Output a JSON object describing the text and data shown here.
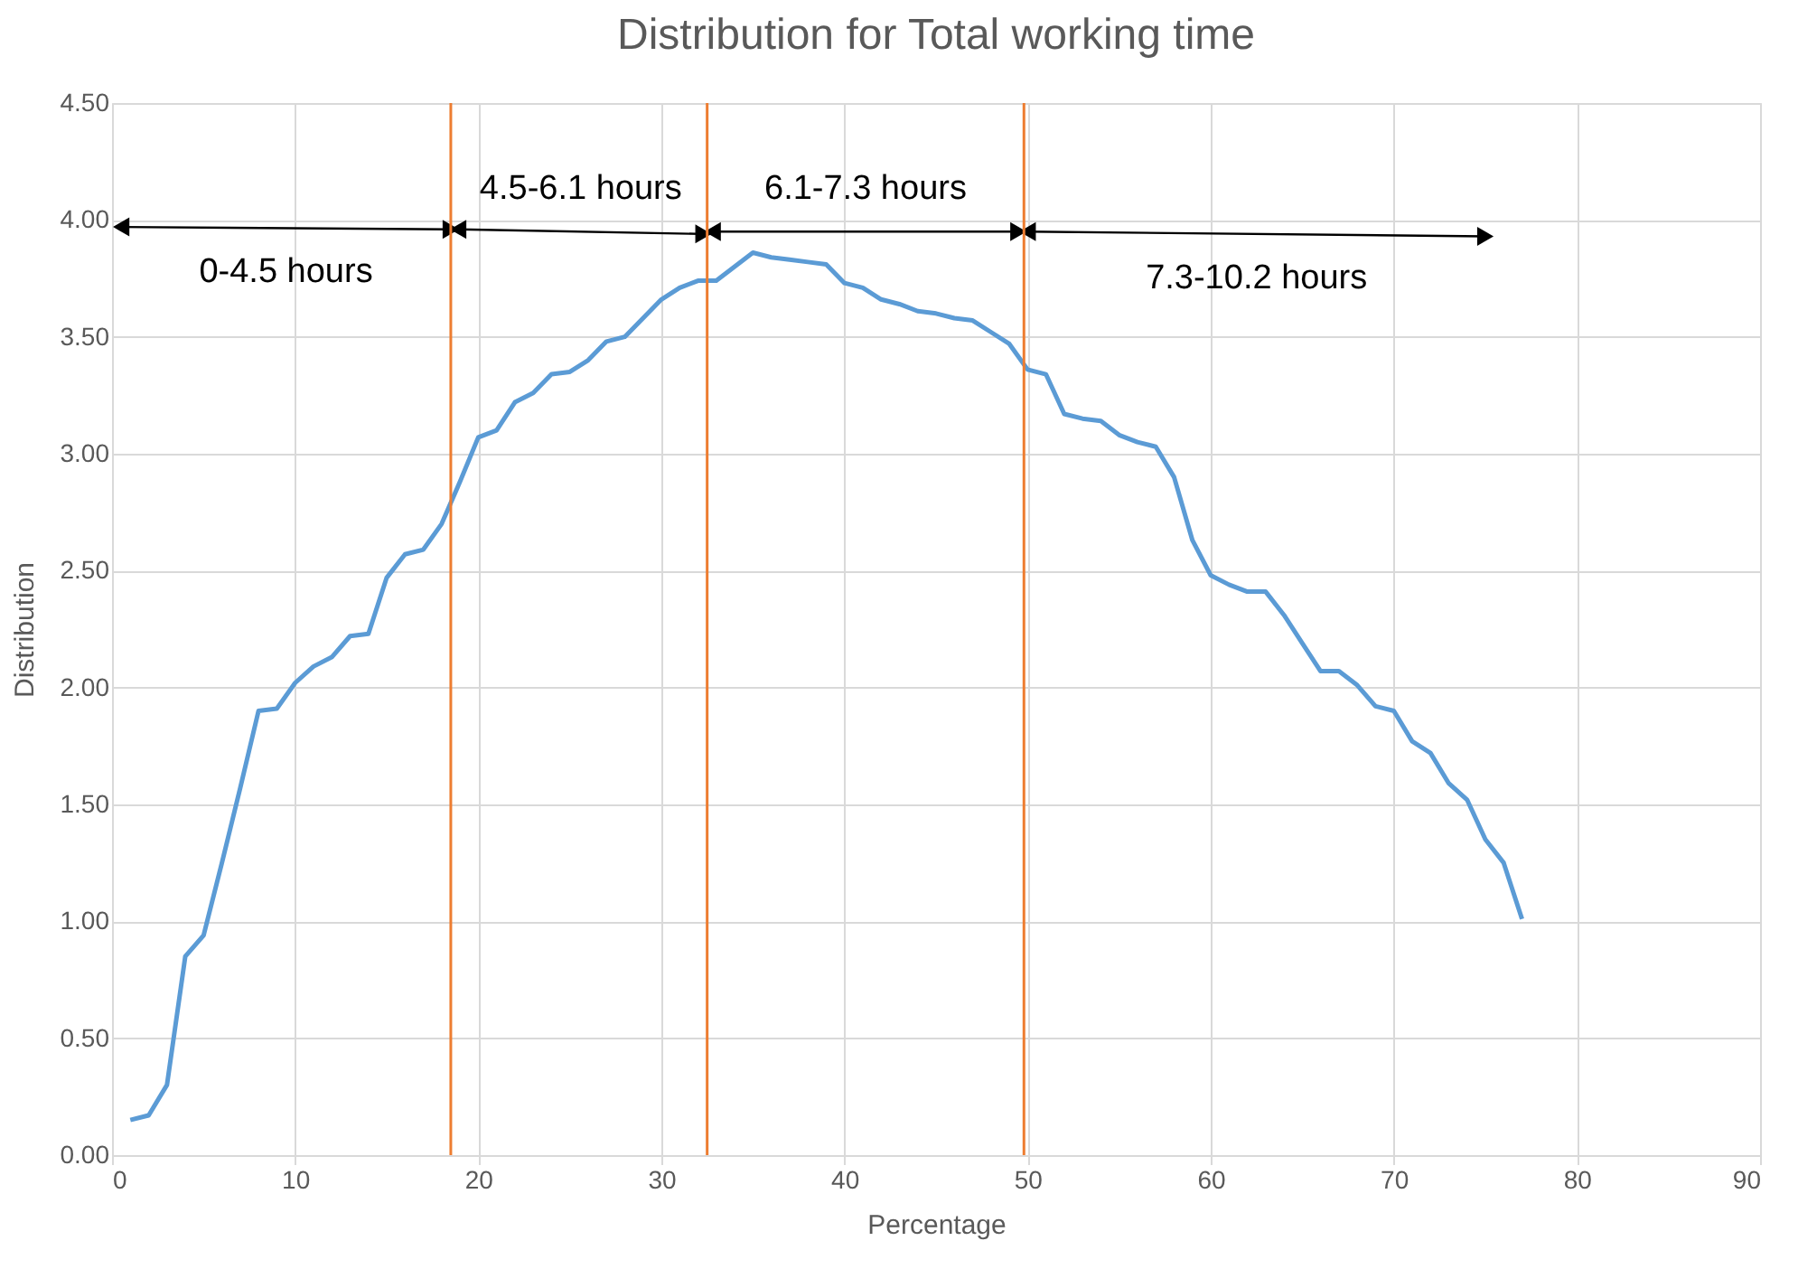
{
  "chart_data": {
    "type": "line",
    "title": "Distribution for Total working time",
    "xlabel": "Percentage",
    "ylabel": "Distribution",
    "x": [
      1,
      2,
      3,
      4,
      5,
      6,
      7,
      8,
      9,
      10,
      11,
      12,
      13,
      14,
      15,
      16,
      17,
      18,
      19,
      20,
      21,
      22,
      23,
      24,
      25,
      26,
      27,
      28,
      29,
      30,
      31,
      32,
      33,
      34,
      35,
      36,
      37,
      38,
      39,
      40,
      41,
      42,
      43,
      44,
      45,
      46,
      47,
      48,
      49,
      50,
      51,
      52,
      53,
      54,
      55,
      56,
      57,
      58,
      59,
      60,
      61,
      62,
      63,
      64,
      65,
      66,
      67,
      68,
      69,
      70,
      71,
      72,
      73,
      74,
      75,
      76,
      77
    ],
    "series": [
      {
        "color": "#5b9bd5",
        "values": [
          0.15,
          0.17,
          0.3,
          0.85,
          0.94,
          1.25,
          1.57,
          1.9,
          1.91,
          2.02,
          2.09,
          2.13,
          2.22,
          2.23,
          2.47,
          2.57,
          2.59,
          2.7,
          2.88,
          3.07,
          3.1,
          3.22,
          3.26,
          3.34,
          3.35,
          3.4,
          3.48,
          3.5,
          3.58,
          3.66,
          3.71,
          3.74,
          3.74,
          3.8,
          3.86,
          3.84,
          3.83,
          3.82,
          3.81,
          3.73,
          3.71,
          3.66,
          3.64,
          3.61,
          3.6,
          3.58,
          3.57,
          3.52,
          3.47,
          3.36,
          3.34,
          3.17,
          3.15,
          3.14,
          3.08,
          3.05,
          3.03,
          2.9,
          2.63,
          2.48,
          2.44,
          2.41,
          2.41,
          2.31,
          2.19,
          2.07,
          2.07,
          2.01,
          1.92,
          1.9,
          1.77,
          1.72,
          1.59,
          1.52,
          1.35,
          1.25,
          1.01
        ]
      },
      {
        "color": "#000000",
        "marker": "triangle",
        "x": [
          0.5,
          18.5
        ],
        "values": [
          3.97,
          3.96
        ]
      },
      {
        "color": "#000000",
        "marker": "triangle",
        "x": [
          18.9,
          32.3
        ],
        "values": [
          3.96,
          3.94
        ]
      },
      {
        "color": "#000000",
        "marker": "triangle",
        "x": [
          32.8,
          49.5
        ],
        "values": [
          3.95,
          3.95
        ]
      },
      {
        "color": "#000000",
        "marker": "triangle",
        "x": [
          50.0,
          75.0
        ],
        "values": [
          3.95,
          3.93
        ]
      }
    ],
    "xlim": [
      0,
      90
    ],
    "xticks": [
      0,
      10,
      20,
      30,
      40,
      50,
      60,
      70,
      80,
      90
    ],
    "ylim": [
      0,
      4.5
    ],
    "yticks": [
      {
        "value": 0,
        "label": "0.00"
      },
      {
        "value": 0.5,
        "label": "0.50"
      },
      {
        "value": 1,
        "label": "1.00"
      },
      {
        "value": 1.5,
        "label": "1.50"
      },
      {
        "value": 2,
        "label": "2.00"
      },
      {
        "value": 2.5,
        "label": "2.50"
      },
      {
        "value": 3,
        "label": "3.00"
      },
      {
        "value": 3.5,
        "label": "3.50"
      },
      {
        "value": 4,
        "label": "4.00"
      },
      {
        "value": 4.5,
        "label": "4.50"
      }
    ],
    "grid": true,
    "marker": "none",
    "line_style": "solid",
    "ref_lines": [
      {
        "axis": "x",
        "value": 18.5,
        "color": "#ed7d31"
      },
      {
        "axis": "x",
        "value": 32.5,
        "color": "#ed7d31"
      },
      {
        "axis": "x",
        "value": 49.8,
        "color": "#ed7d31"
      }
    ],
    "annotations": [
      "0-4.5 hours",
      "4.5-6.1 hours",
      "6.1-7.3 hours",
      "7.3-10.2 hours"
    ]
  }
}
